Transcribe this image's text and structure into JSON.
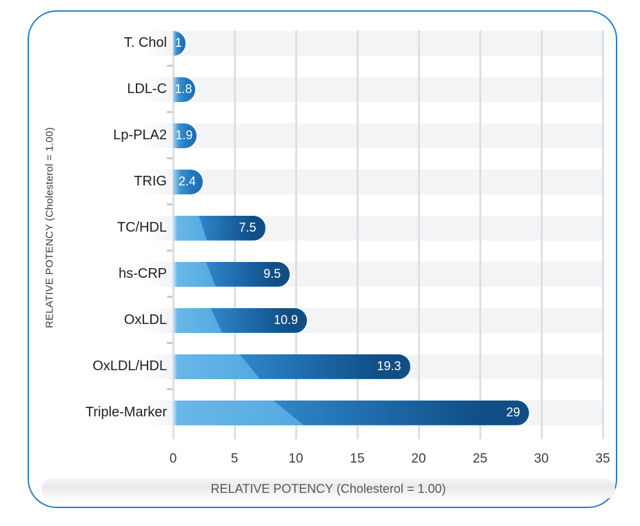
{
  "chart_data": {
    "type": "bar",
    "orientation": "horizontal",
    "title": "",
    "categories": [
      "T. Chol",
      "LDL-C",
      "Lp-PLA2",
      "TRIG",
      "TC/HDL",
      "hs-CRP",
      "OxLDL",
      "OxLDL/HDL",
      "Triple-Marker"
    ],
    "values": [
      1,
      1.8,
      1.9,
      2.4,
      7.5,
      9.5,
      10.9,
      19.3,
      29
    ],
    "value_labels": [
      "1",
      "1.8",
      "1.9",
      "2.4",
      "7.5",
      "9.5",
      "10.9",
      "19.3",
      "29"
    ],
    "ylabel": "RELATIVE POTENCY (Cholesterol = 1.00)",
    "caption": "RELATIVE POTENCY (Cholesterol = 1.00)",
    "xlim": [
      0,
      35
    ],
    "x_ticks": [
      "0",
      "5",
      "10",
      "15",
      "20",
      "25",
      "30",
      "35"
    ],
    "grid": "vertical gridlines every 5 units, light gray row stripes behind each bar",
    "legend_position": "none",
    "colors": {
      "frame_border": "#2e7ec2",
      "bar_gradient_light": "#6ab7e8",
      "bar_gradient_mid": "#2e82c4",
      "bar_gradient_dark": "#114e85",
      "row_stripe": "#f3f4f6",
      "gridline": "#dedfe2",
      "value_text": "#ffffff",
      "axis_text": "#3b3d40",
      "category_text": "#1f1f1f",
      "caption_text": "#58595c"
    }
  }
}
